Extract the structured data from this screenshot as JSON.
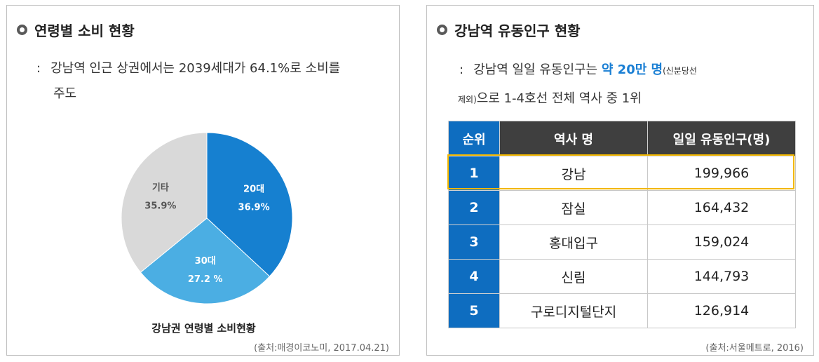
{
  "left": {
    "title": "연령별 소비 현황",
    "desc_colon": ":",
    "desc_line1": "강남역 인근 상권에서는 2039세대가 64.1%로 소비를",
    "desc_line2": "주도",
    "caption": "강남권 연령별 소비현황",
    "source": "(출처:매경이코노미, 2017.04.21)"
  },
  "right": {
    "title": "강남역 유동인구 현황",
    "desc_colon": ":",
    "desc_pre": "강남역 일일 유동인구는 ",
    "desc_highlight": "약 20만 명",
    "desc_small_a": "(신분당선",
    "desc_small_b": "제외)",
    "desc_post": "으로 1-4호선 전체 역사 중 1위",
    "source": "(출처:서울메트로, 2016)"
  },
  "colors": {
    "slice_20": "#1680d0",
    "slice_30": "#4baee3",
    "slice_etc": "#d9d9d9",
    "highlight": "#f2b700",
    "accent": "#1a7fd4"
  },
  "chart_data": [
    {
      "type": "pie",
      "title": "강남권 연령별 소비현황",
      "slices": [
        {
          "label": "20대",
          "value": 36.9,
          "display": "36.9%",
          "color": "#1680d0",
          "text_color": "#ffffff"
        },
        {
          "label": "30대",
          "value": 27.2,
          "display": "27.2 %",
          "color": "#4baee3",
          "text_color": "#ffffff"
        },
        {
          "label": "기타",
          "value": 35.9,
          "display": "35.9%",
          "color": "#d9d9d9",
          "text_color": "#555555"
        }
      ]
    },
    {
      "type": "table",
      "columns": [
        "순위",
        "역사 명",
        "일일 유동인구(명)"
      ],
      "rows": [
        {
          "rank": "1",
          "station": "강남",
          "count": "199,966"
        },
        {
          "rank": "2",
          "station": "잠실",
          "count": "164,432"
        },
        {
          "rank": "3",
          "station": "홍대입구",
          "count": "159,024"
        },
        {
          "rank": "4",
          "station": "신림",
          "count": "144,793"
        },
        {
          "rank": "5",
          "station": "구로디지털단지",
          "count": "126,914"
        }
      ],
      "highlighted_rank": "1"
    }
  ]
}
